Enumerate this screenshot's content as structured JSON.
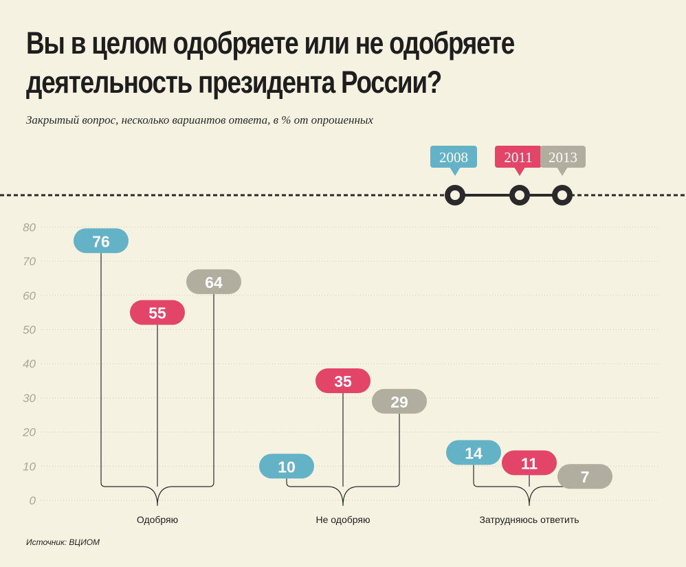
{
  "title": "Вы в целом одобряете или не одобряете деятельность президента России?",
  "subtitle": "Закрытый вопрос, несколько вариантов ответа, в % от опрошенных",
  "source": "Источник: ВЦИОМ",
  "colors": {
    "2008": "#64b2c6",
    "2011": "#e34568",
    "2013": "#b1ad9f",
    "background": "#f6f2e1",
    "line": "#2a2a2a"
  },
  "chart_data": {
    "type": "bar",
    "categories": [
      "Одобряю",
      "Не одобряю",
      "Затрудняюсь ответить"
    ],
    "series": [
      {
        "name": "2008",
        "values": [
          76,
          10,
          14
        ]
      },
      {
        "name": "2011",
        "values": [
          55,
          35,
          11
        ]
      },
      {
        "name": "2013",
        "values": [
          64,
          29,
          7
        ]
      }
    ],
    "ylim": [
      0,
      80
    ],
    "yticks": [
      "0",
      "10",
      "20",
      "30",
      "40",
      "50",
      "60",
      "70",
      "80"
    ],
    "grid": true,
    "legend": "top-right"
  }
}
